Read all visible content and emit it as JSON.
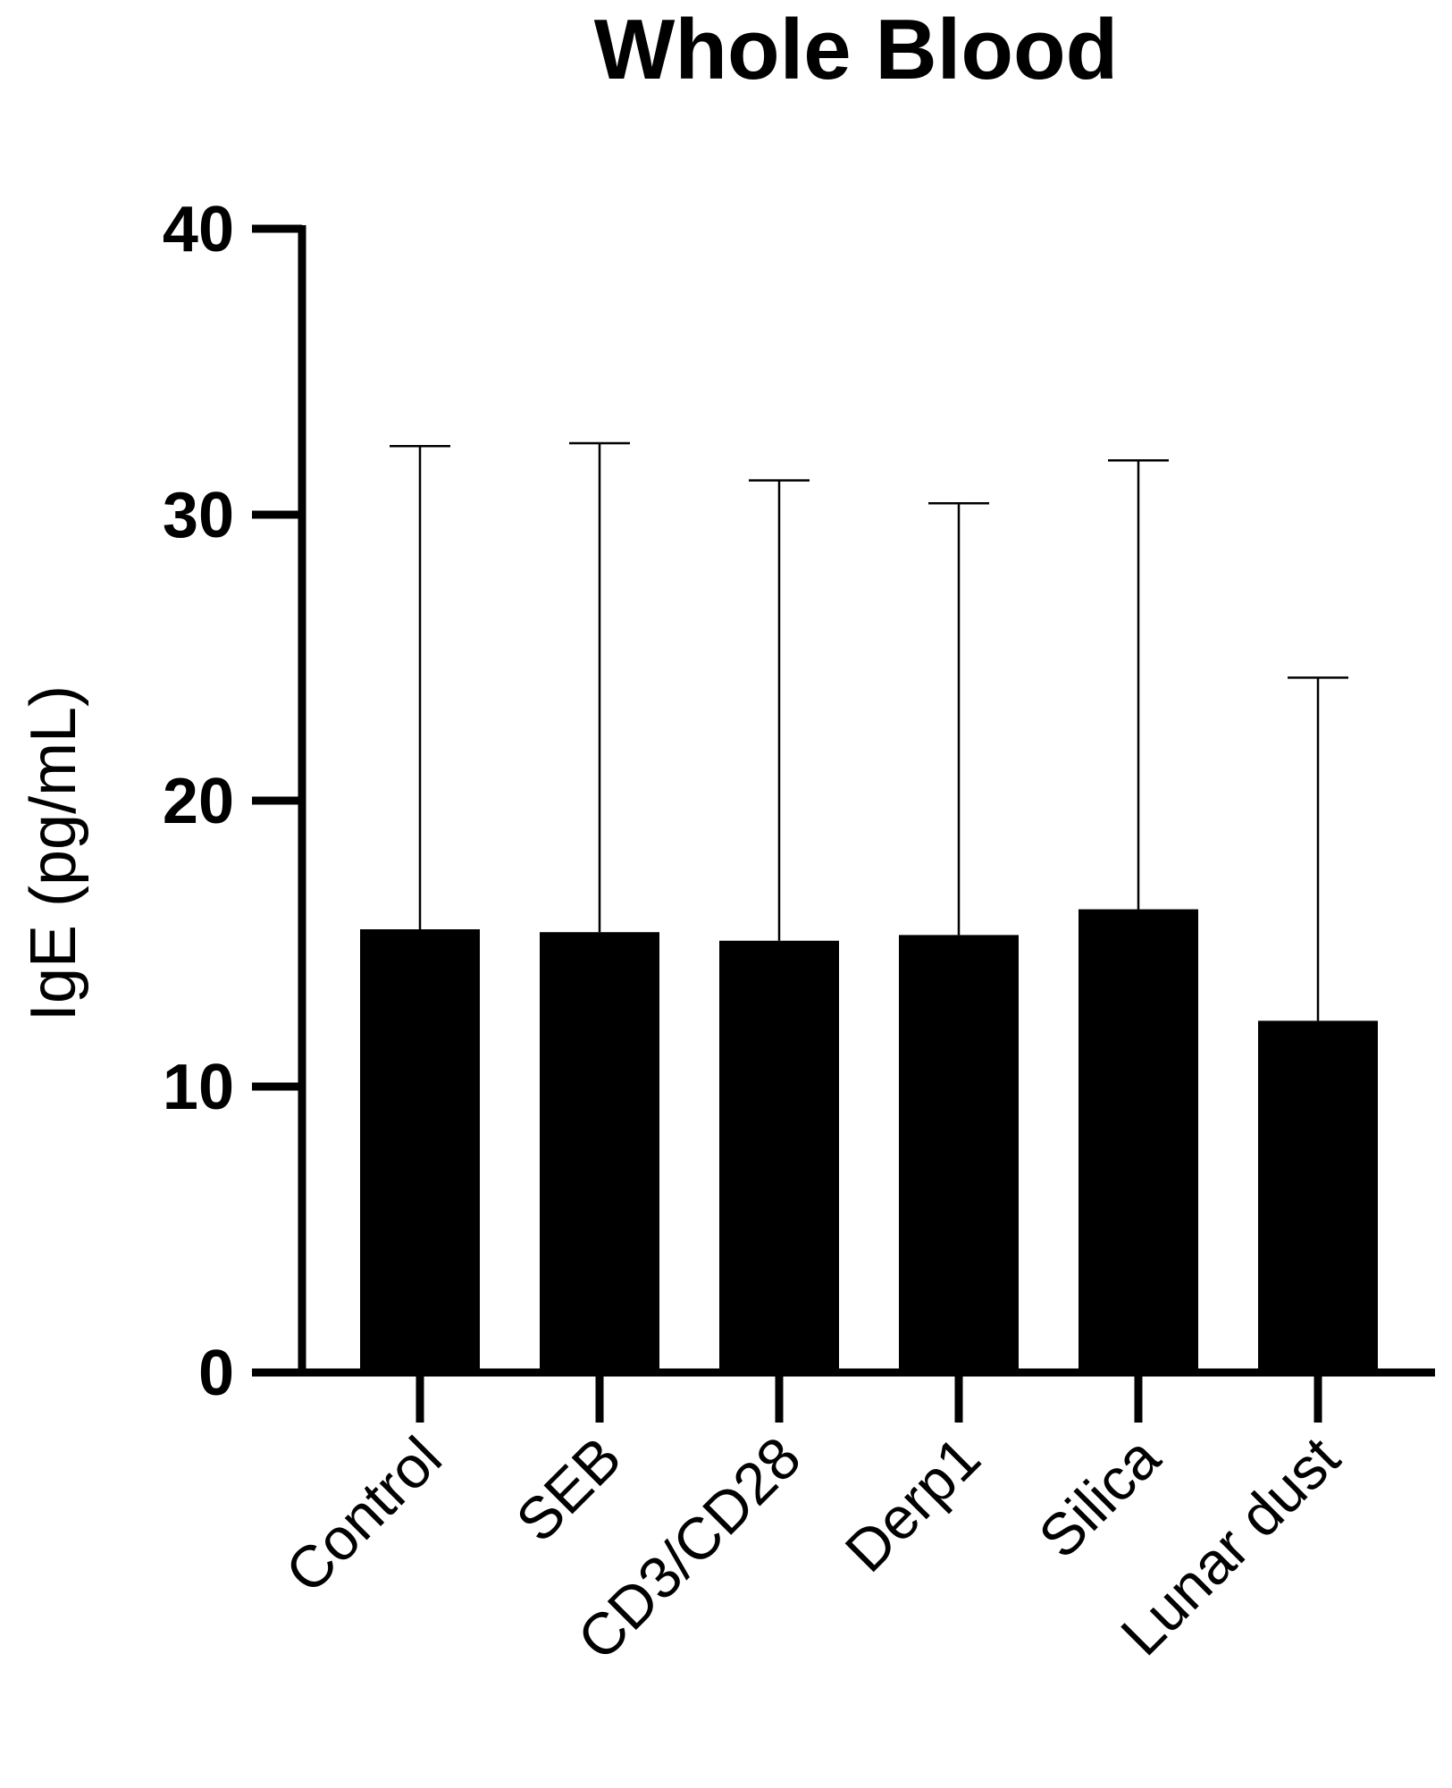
{
  "chart_data": {
    "type": "bar",
    "title": "Whole Blood",
    "xlabel": "",
    "ylabel": "IgE (pg/mL)",
    "ylim": [
      0,
      40
    ],
    "yticks": [
      0,
      10,
      20,
      30,
      40
    ],
    "ytick_labels": [
      "0",
      "10",
      "20",
      "30",
      "40"
    ],
    "categories": [
      "Control",
      "SEB",
      "CD3/CD28",
      "Derp1",
      "Silica",
      "Lunar dust"
    ],
    "values": [
      15.5,
      15.4,
      15.1,
      15.3,
      16.2,
      12.3
    ],
    "error_upper": [
      32.4,
      32.5,
      31.2,
      30.4,
      31.9,
      24.3
    ],
    "grid": false,
    "bar_color": "#000000"
  }
}
